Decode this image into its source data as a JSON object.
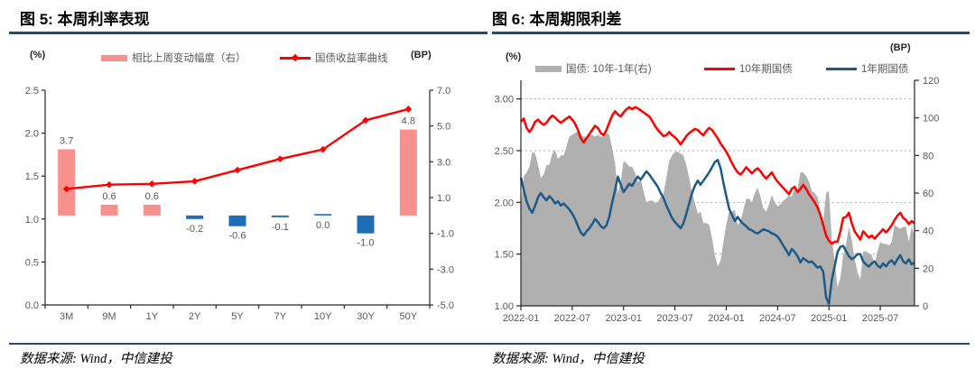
{
  "panels": [
    {
      "title": "图 5: 本周利率表现",
      "left_axis_unit": "(%)",
      "right_axis_unit": "(BP)",
      "legend": [
        {
          "label": "相比上周变动幅度（右）",
          "swatch": "bar",
          "color": "#f8908e"
        },
        {
          "label": "国债收益率曲线",
          "swatch": "line-marker",
          "color": "#fe0000"
        }
      ],
      "source": "数据来源: Wind，中信建投"
    },
    {
      "title": "图 6: 本周期限利差",
      "left_axis_unit": "(%)",
      "right_axis_unit": "(BP)",
      "legend": [
        {
          "label": "国债: 10年-1年(右)",
          "swatch": "bar",
          "color": "#b0b0b0"
        },
        {
          "label": "10年期国债",
          "swatch": "line",
          "color": "#fe0000"
        },
        {
          "label": "1年期国债",
          "swatch": "line",
          "color": "#1e5a87"
        }
      ],
      "source": "数据来源: Wind，中信建投"
    }
  ],
  "chart_data": [
    {
      "type": "bar",
      "title": "本周利率表现",
      "categories": [
        "3M",
        "9M",
        "1Y",
        "2Y",
        "5Y",
        "7Y",
        "10Y",
        "30Y",
        "50Y"
      ],
      "series": [
        {
          "name": "相比上周变动幅度（右）",
          "type": "bar",
          "axis": "right",
          "unit": "BP",
          "values": [
            3.7,
            0.6,
            0.6,
            -0.2,
            -0.6,
            -0.1,
            0.0,
            -1.0,
            4.8
          ],
          "color_positive": "#f8908e",
          "color_negative": "#1e6eb5",
          "label_color": "#595959"
        },
        {
          "name": "国债收益率曲线",
          "type": "line",
          "axis": "left",
          "unit": "%",
          "values": [
            1.35,
            1.4,
            1.41,
            1.44,
            1.57,
            1.7,
            1.81,
            2.15,
            2.28
          ],
          "color": "#fe0000"
        }
      ],
      "left_axis": {
        "min": 0,
        "max": 2.5,
        "ticks": [
          {
            "v": 0,
            "t": "0.0"
          },
          {
            "v": 0.5,
            "t": "0.5"
          },
          {
            "v": 1,
            "t": "1.0"
          },
          {
            "v": 1.5,
            "t": "1.5"
          },
          {
            "v": 2,
            "t": "2.0"
          },
          {
            "v": 2.5,
            "t": "2.5"
          }
        ]
      },
      "right_axis": {
        "min": -5,
        "max": 7,
        "ticks": [
          {
            "v": -5,
            "t": "-5.0"
          },
          {
            "v": -3,
            "t": "-3.0"
          },
          {
            "v": -1,
            "t": "-1.0"
          },
          {
            "v": 1,
            "t": "1.0"
          },
          {
            "v": 3,
            "t": "3.0"
          },
          {
            "v": 5,
            "t": "5.0"
          },
          {
            "v": 7,
            "t": "7.0"
          }
        ]
      },
      "grid": false,
      "legend_position": "top"
    },
    {
      "type": "area+line",
      "title": "本周期限利差",
      "x_start": "2022-01",
      "x_step_months": 0.33333,
      "months_total": 46,
      "x_ticks": [
        {
          "m": 0,
          "t": "2022-01"
        },
        {
          "m": 6,
          "t": "2022-07"
        },
        {
          "m": 12,
          "t": "2023-01"
        },
        {
          "m": 18,
          "t": "2023-07"
        },
        {
          "m": 24,
          "t": "2024-01"
        },
        {
          "m": 30,
          "t": "2024-07"
        },
        {
          "m": 36,
          "t": "2025-01"
        },
        {
          "m": 42,
          "t": "2025-07"
        }
      ],
      "series": [
        {
          "name": "10年期国债",
          "axis": "left",
          "unit": "%",
          "color": "#fe0000",
          "values": [
            2.78,
            2.81,
            2.72,
            2.68,
            2.72,
            2.78,
            2.8,
            2.77,
            2.75,
            2.77,
            2.81,
            2.84,
            2.82,
            2.79,
            2.77,
            2.79,
            2.81,
            2.83,
            2.8,
            2.76,
            2.7,
            2.62,
            2.58,
            2.62,
            2.66,
            2.7,
            2.74,
            2.72,
            2.67,
            2.65,
            2.7,
            2.77,
            2.84,
            2.88,
            2.85,
            2.83,
            2.87,
            2.9,
            2.92,
            2.9,
            2.92,
            2.91,
            2.89,
            2.87,
            2.85,
            2.83,
            2.79,
            2.74,
            2.7,
            2.67,
            2.64,
            2.65,
            2.68,
            2.65,
            2.63,
            2.6,
            2.56,
            2.6,
            2.64,
            2.67,
            2.69,
            2.71,
            2.7,
            2.67,
            2.65,
            2.69,
            2.72,
            2.7,
            2.66,
            2.62,
            2.57,
            2.53,
            2.49,
            2.44,
            2.38,
            2.33,
            2.29,
            2.27,
            2.3,
            2.34,
            2.31,
            2.28,
            2.31,
            2.33,
            2.3,
            2.26,
            2.23,
            2.26,
            2.29,
            2.24,
            2.2,
            2.17,
            2.14,
            2.11,
            2.08,
            2.13,
            2.15,
            2.1,
            2.13,
            2.17,
            2.13,
            2.08,
            2.04,
            2.0,
            1.95,
            1.88,
            1.78,
            1.68,
            1.63,
            1.6,
            1.62,
            1.62,
            1.72,
            1.85,
            1.86,
            1.9,
            1.8,
            1.72,
            1.68,
            1.64,
            1.72,
            1.69,
            1.66,
            1.68,
            1.65,
            1.68,
            1.71,
            1.74,
            1.71,
            1.74,
            1.78,
            1.83,
            1.87,
            1.9,
            1.85,
            1.83,
            1.79,
            1.82,
            1.8
          ]
        },
        {
          "name": "1年期国债",
          "axis": "left",
          "unit": "%",
          "color": "#1e5a87",
          "values": [
            2.24,
            2.12,
            2.01,
            1.94,
            1.9,
            1.97,
            2.05,
            2.09,
            2.05,
            2.02,
            2.06,
            2.03,
            1.99,
            2.01,
            1.97,
            1.99,
            1.96,
            1.93,
            1.89,
            1.84,
            1.77,
            1.71,
            1.68,
            1.72,
            1.75,
            1.79,
            1.84,
            1.81,
            1.77,
            1.75,
            1.78,
            1.86,
            2.0,
            2.12,
            2.25,
            2.17,
            2.1,
            2.14,
            2.18,
            2.16,
            2.21,
            2.25,
            2.22,
            2.26,
            2.3,
            2.27,
            2.23,
            2.19,
            2.15,
            2.09,
            2.04,
            1.97,
            1.91,
            1.85,
            1.81,
            1.78,
            1.75,
            1.8,
            1.89,
            1.99,
            2.09,
            2.16,
            2.21,
            2.17,
            2.21,
            2.25,
            2.29,
            2.34,
            2.39,
            2.41,
            2.33,
            2.19,
            2.06,
            1.94,
            1.88,
            1.82,
            1.86,
            1.82,
            1.79,
            1.77,
            1.74,
            1.73,
            1.71,
            1.7,
            1.72,
            1.74,
            1.73,
            1.72,
            1.7,
            1.69,
            1.67,
            1.63,
            1.58,
            1.54,
            1.49,
            1.55,
            1.52,
            1.48,
            1.42,
            1.46,
            1.44,
            1.42,
            1.43,
            1.4,
            1.37,
            1.38,
            1.33,
            1.08,
            1.02,
            1.25,
            1.38,
            1.52,
            1.57,
            1.58,
            1.53,
            1.48,
            1.45,
            1.47,
            1.5,
            1.5,
            1.43,
            1.4,
            1.38,
            1.41,
            1.43,
            1.39,
            1.37,
            1.41,
            1.38,
            1.42,
            1.44,
            1.4,
            1.45,
            1.49,
            1.43,
            1.41,
            1.45,
            1.4,
            1.42
          ]
        }
      ],
      "area": {
        "name": "国债: 10年-1年(右)",
        "axis": "right",
        "unit": "BP",
        "color": "#b0b0b0",
        "derived": "(10年期国债 - 1年期国债) × 100"
      },
      "left_axis": {
        "min": 1.0,
        "max": 3.18,
        "gridlines": [
          1.5,
          2.0,
          2.5,
          3.0
        ],
        "ticks": [
          {
            "v": 1,
            "t": "1.00"
          },
          {
            "v": 1.5,
            "t": "1.50"
          },
          {
            "v": 2,
            "t": "2.00"
          },
          {
            "v": 2.5,
            "t": "2.50"
          },
          {
            "v": 3,
            "t": "3.00"
          }
        ]
      },
      "right_axis": {
        "min": 0,
        "max": 120,
        "ticks": [
          {
            "v": 0,
            "t": "0"
          },
          {
            "v": 20,
            "t": "20"
          },
          {
            "v": 40,
            "t": "40"
          },
          {
            "v": 60,
            "t": "60"
          },
          {
            "v": 80,
            "t": "80"
          },
          {
            "v": 100,
            "t": "100"
          },
          {
            "v": 120,
            "t": "120"
          }
        ]
      },
      "grid": "dotted-horizontal",
      "legend_position": "top"
    }
  ]
}
